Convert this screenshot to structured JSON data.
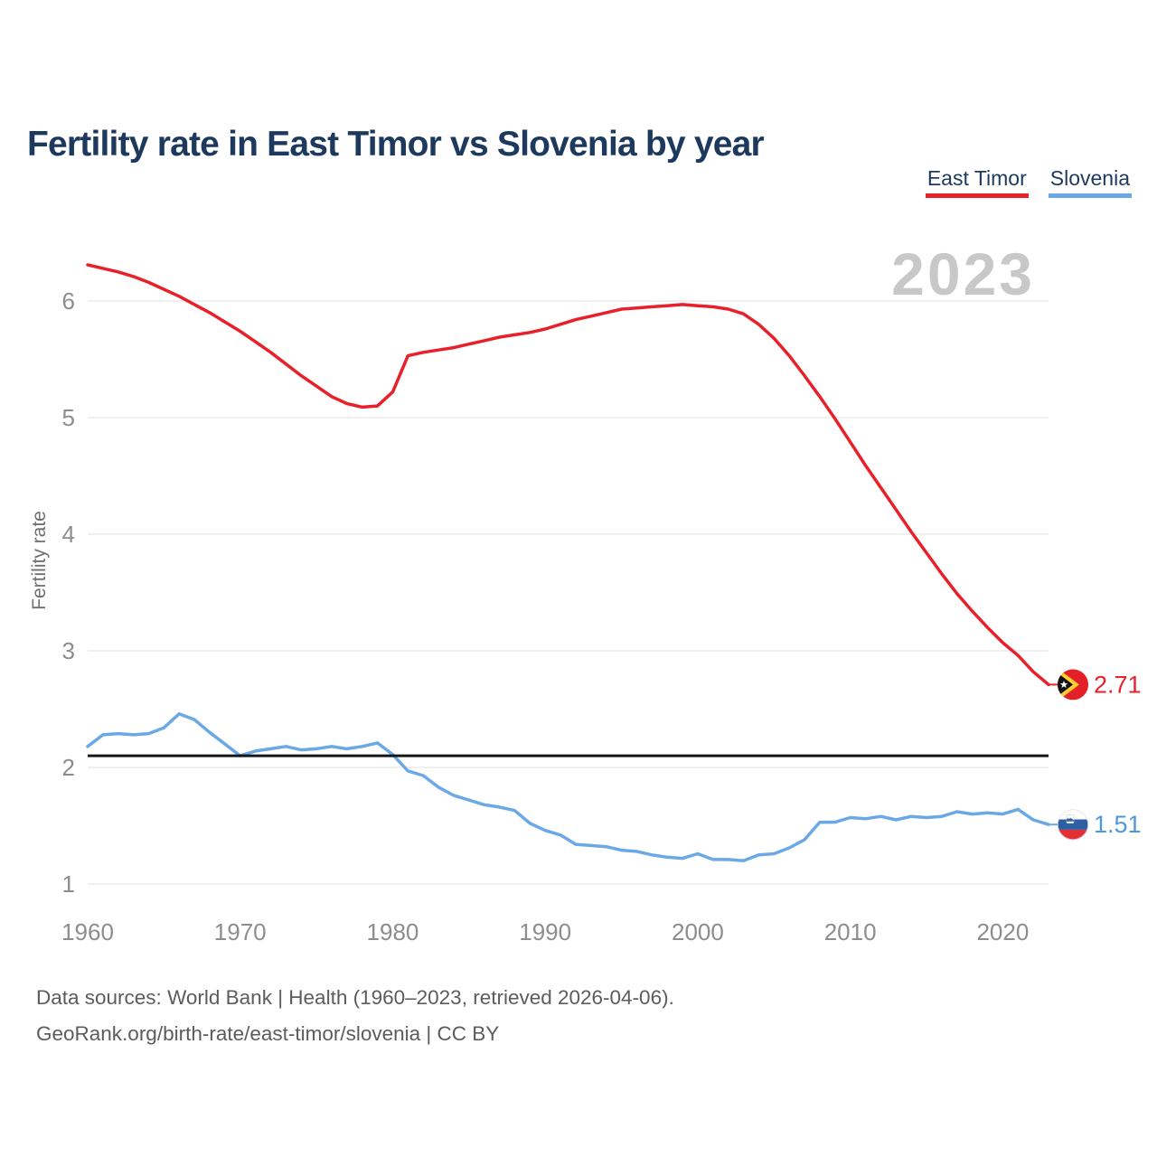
{
  "page": {
    "title": "Fertility rate in East Timor vs Slovenia by year",
    "watermark": "2023",
    "y_axis_label": "Fertility rate",
    "footer_line1": "Data sources: World Bank | Health (1960–2023, retrieved 2026-04-06).",
    "footer_line2": "GeoRank.org/birth-rate/east-timor/slovenia | CC BY"
  },
  "legend": {
    "items": [
      {
        "label": "East Timor",
        "color": "#e8202a"
      },
      {
        "label": "Slovenia",
        "color": "#6aa9e6"
      }
    ]
  },
  "colors": {
    "east_timor_line": "#e8202a",
    "slovenia_line": "#6aa9e6",
    "slovenia_label": "#4f97dd",
    "reference_line": "#161616",
    "gridline": "#ebebeb",
    "tick_label": "#8d8d8d",
    "title": "#1d3a5e",
    "watermark": "#c8c8c8"
  },
  "chart_data": {
    "type": "line",
    "title": "Fertility rate in East Timor vs Slovenia by year",
    "xlabel": "",
    "ylabel": "Fertility rate",
    "grid": "horizontal",
    "legend_position": "top-right",
    "watermark_year": "2023",
    "xlim": [
      1960,
      2023
    ],
    "ylim": [
      0.85,
      6.45
    ],
    "yticks": [
      1,
      2,
      3,
      4,
      5,
      6
    ],
    "xticks": [
      1960,
      1970,
      1980,
      1990,
      2000,
      2010,
      2020
    ],
    "reference_line": 2.1,
    "x": [
      1960,
      1961,
      1962,
      1963,
      1964,
      1965,
      1966,
      1967,
      1968,
      1969,
      1970,
      1971,
      1972,
      1973,
      1974,
      1975,
      1976,
      1977,
      1978,
      1979,
      1980,
      1981,
      1982,
      1983,
      1984,
      1985,
      1986,
      1987,
      1988,
      1989,
      1990,
      1991,
      1992,
      1993,
      1994,
      1995,
      1996,
      1997,
      1998,
      1999,
      2000,
      2001,
      2002,
      2003,
      2004,
      2005,
      2006,
      2007,
      2008,
      2009,
      2010,
      2011,
      2012,
      2013,
      2014,
      2015,
      2016,
      2017,
      2018,
      2019,
      2020,
      2021,
      2022,
      2023
    ],
    "series": [
      {
        "name": "East Timor",
        "flag": "east-timor",
        "color": "#e8202a",
        "label_color": "#e8202a",
        "end_label": "2.71",
        "values": [
          6.31,
          6.28,
          6.25,
          6.21,
          6.16,
          6.1,
          6.04,
          5.97,
          5.9,
          5.82,
          5.74,
          5.65,
          5.56,
          5.46,
          5.36,
          5.27,
          5.18,
          5.12,
          5.09,
          5.1,
          5.22,
          5.53,
          5.56,
          5.58,
          5.6,
          5.63,
          5.66,
          5.69,
          5.71,
          5.73,
          5.76,
          5.8,
          5.84,
          5.87,
          5.9,
          5.93,
          5.94,
          5.95,
          5.96,
          5.97,
          5.96,
          5.95,
          5.93,
          5.89,
          5.8,
          5.68,
          5.53,
          5.36,
          5.18,
          4.99,
          4.79,
          4.59,
          4.4,
          4.21,
          4.02,
          3.84,
          3.66,
          3.49,
          3.34,
          3.2,
          3.07,
          2.96,
          2.82,
          2.71
        ]
      },
      {
        "name": "Slovenia",
        "flag": "slovenia",
        "color": "#6aa9e6",
        "label_color": "#4f97dd",
        "end_label": "1.51",
        "values": [
          2.18,
          2.28,
          2.29,
          2.28,
          2.29,
          2.34,
          2.46,
          2.41,
          2.3,
          2.2,
          2.1,
          2.14,
          2.16,
          2.18,
          2.15,
          2.16,
          2.18,
          2.16,
          2.18,
          2.21,
          2.11,
          1.97,
          1.93,
          1.83,
          1.76,
          1.72,
          1.68,
          1.66,
          1.63,
          1.52,
          1.46,
          1.42,
          1.34,
          1.33,
          1.32,
          1.29,
          1.28,
          1.25,
          1.23,
          1.22,
          1.26,
          1.21,
          1.21,
          1.2,
          1.25,
          1.26,
          1.31,
          1.38,
          1.53,
          1.53,
          1.57,
          1.56,
          1.58,
          1.55,
          1.58,
          1.57,
          1.58,
          1.62,
          1.6,
          1.61,
          1.6,
          1.64,
          1.55,
          1.51
        ]
      }
    ]
  }
}
